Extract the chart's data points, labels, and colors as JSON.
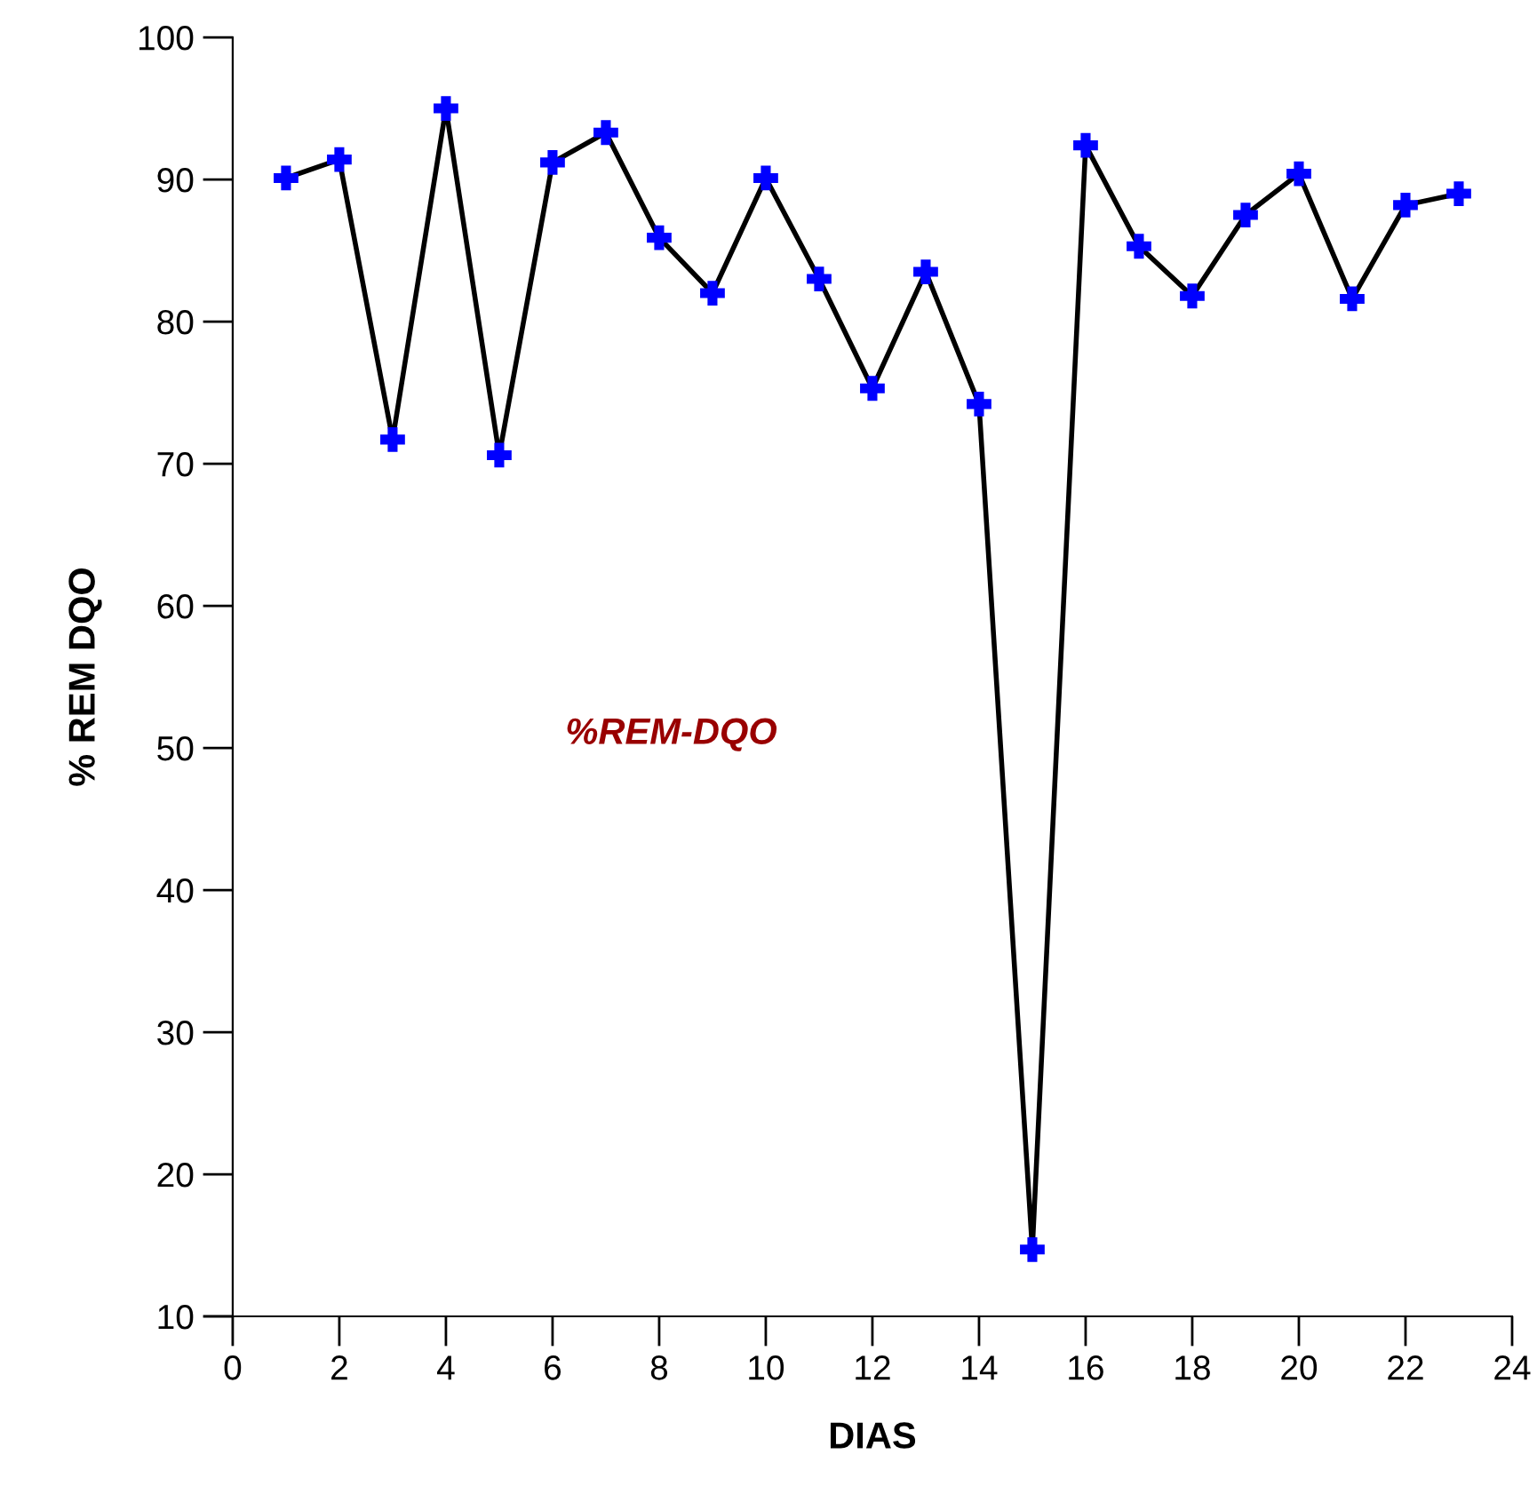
{
  "chart_data": {
    "type": "line",
    "xlabel": "DIAS",
    "ylabel": "% REM DQO",
    "x": [
      1,
      2,
      3,
      4,
      5,
      6,
      7,
      8,
      9,
      10,
      11,
      12,
      13,
      14,
      15,
      16,
      17,
      18,
      19,
      20,
      21,
      22,
      23
    ],
    "series": [
      {
        "color": "#0000ff",
        "values": [
          90.1,
          91.4,
          71.7,
          95.0,
          70.6,
          91.2,
          93.3,
          85.9,
          82.0,
          90.1,
          83.0,
          75.3,
          83.5,
          74.2,
          14.7,
          92.4,
          85.3,
          81.8,
          87.5,
          90.4,
          81.6,
          88.2,
          89.0
        ]
      }
    ],
    "annotations": [
      "%REM-DQO"
    ],
    "xlim": [
      0,
      24
    ],
    "xticks": [
      0,
      2,
      4,
      6,
      8,
      10,
      12,
      14,
      16,
      18,
      20,
      22,
      24
    ],
    "ylim": [
      10,
      100
    ],
    "yticks": [
      10,
      20,
      30,
      40,
      50,
      60,
      70,
      80,
      90,
      100
    ],
    "marker": "cross",
    "line_style": "solid",
    "grid": false,
    "legend": false
  }
}
